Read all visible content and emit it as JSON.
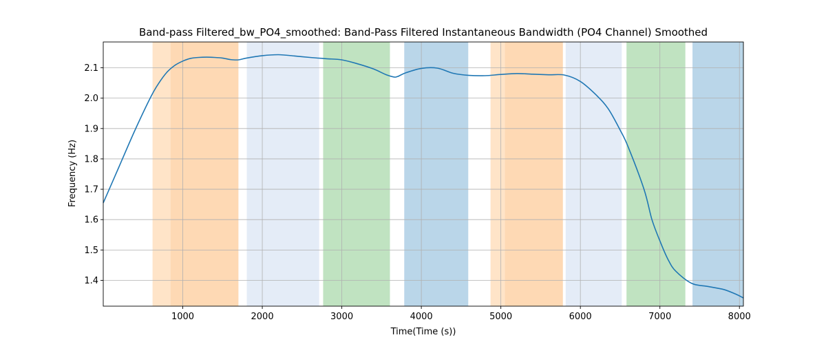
{
  "chart_data": {
    "type": "line",
    "title": "Band-pass Filtered_bw_PO4_smoothed: Band-Pass Filtered Instantaneous Bandwidth (PO4 Channel) Smoothed",
    "xlabel": "Time(Time (s))",
    "ylabel": "Frequency (Hz)",
    "xlim": [
      0,
      8050
    ],
    "ylim": [
      1.315,
      2.185
    ],
    "x_ticks": [
      1000,
      2000,
      3000,
      4000,
      5000,
      6000,
      7000,
      8000
    ],
    "y_ticks": [
      1.4,
      1.5,
      1.6,
      1.7,
      1.8,
      1.9,
      2.0,
      2.1
    ],
    "y_tick_labels": [
      "1.4",
      "1.5",
      "1.6",
      "1.7",
      "1.8",
      "1.9",
      "2.0",
      "2.1"
    ],
    "grid": true,
    "line_color": "#1f77b4",
    "bands": [
      {
        "x0": 620,
        "x1": 845,
        "color": "#ffe4c8"
      },
      {
        "x0": 845,
        "x1": 1700,
        "color": "#fed9b4"
      },
      {
        "x0": 1805,
        "x1": 2715,
        "color": "#e4ecf7"
      },
      {
        "x0": 2765,
        "x1": 3605,
        "color": "#c0e3c1"
      },
      {
        "x0": 3785,
        "x1": 4590,
        "color": "#bad6e9"
      },
      {
        "x0": 4870,
        "x1": 5050,
        "color": "#ffe4c8"
      },
      {
        "x0": 5050,
        "x1": 5780,
        "color": "#fed9b4"
      },
      {
        "x0": 5815,
        "x1": 6520,
        "color": "#e4ecf7"
      },
      {
        "x0": 6580,
        "x1": 7320,
        "color": "#c0e3c1"
      },
      {
        "x0": 7410,
        "x1": 8050,
        "color": "#bad6e9"
      }
    ],
    "series": [
      {
        "x": [
          0,
          200,
          400,
          600,
          700,
          800,
          900,
          1000,
          1100,
          1200,
          1300,
          1400,
          1500,
          1600,
          1700,
          1800,
          2000,
          2200,
          2400,
          2600,
          2800,
          3000,
          3200,
          3400,
          3550,
          3650,
          3700,
          3800,
          4000,
          4200,
          4400,
          4600,
          4800,
          5000,
          5200,
          5400,
          5600,
          5800,
          6000,
          6200,
          6350,
          6500,
          6600,
          6800,
          6900,
          7000,
          7100,
          7200,
          7400,
          7600,
          7800,
          7950,
          8050
        ],
        "y": [
          1.655,
          1.775,
          1.895,
          2.005,
          2.05,
          2.085,
          2.108,
          2.122,
          2.131,
          2.134,
          2.135,
          2.134,
          2.132,
          2.127,
          2.126,
          2.132,
          2.14,
          2.143,
          2.139,
          2.134,
          2.13,
          2.126,
          2.113,
          2.096,
          2.078,
          2.07,
          2.071,
          2.083,
          2.098,
          2.099,
          2.082,
          2.075,
          2.074,
          2.078,
          2.081,
          2.079,
          2.077,
          2.076,
          2.055,
          2.01,
          1.965,
          1.895,
          1.84,
          1.7,
          1.6,
          1.53,
          1.47,
          1.43,
          1.39,
          1.38,
          1.37,
          1.355,
          1.342
        ]
      }
    ]
  }
}
